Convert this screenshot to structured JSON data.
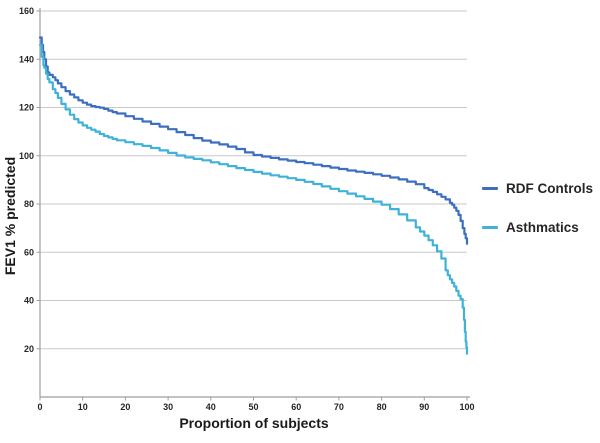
{
  "figure": {
    "background": "#ffffff",
    "grid_color": "#c9c9c9",
    "axis_line_color": "#9e9e9e",
    "tick_text_color": "#262626"
  },
  "chart_data": {
    "type": "line",
    "title": "",
    "xlabel": "Proportion of subjects",
    "ylabel": "FEV1 % predicted",
    "xlim": [
      0,
      100
    ],
    "ylim": [
      0,
      160
    ],
    "x_ticks": [
      0,
      10,
      20,
      30,
      40,
      50,
      60,
      70,
      80,
      90,
      100
    ],
    "y_ticks": [
      20,
      40,
      60,
      80,
      100,
      120,
      140,
      160
    ],
    "grid": "horizontal-only",
    "line_style": "stepped-percentile-curve",
    "legend_position": "right-middle",
    "series": [
      {
        "name": "RDF Controls",
        "color": "#3d6fc0",
        "points": [
          [
            0,
            149
          ],
          [
            0.4,
            146
          ],
          [
            0.7,
            143
          ],
          [
            1,
            140
          ],
          [
            1.4,
            137
          ],
          [
            1.8,
            134.5
          ],
          [
            2.2,
            133.5
          ],
          [
            3,
            132.5
          ],
          [
            3.6,
            131.3
          ],
          [
            4.2,
            130
          ],
          [
            5,
            128.4
          ],
          [
            6,
            126.8
          ],
          [
            7,
            125.4
          ],
          [
            8,
            124.2
          ],
          [
            9,
            123
          ],
          [
            10,
            122
          ],
          [
            11,
            121.2
          ],
          [
            12,
            120.6
          ],
          [
            13,
            120.2
          ],
          [
            14,
            119.9
          ],
          [
            15,
            119.4
          ],
          [
            16,
            118.7
          ],
          [
            17,
            118.1
          ],
          [
            18,
            117.5
          ],
          [
            20,
            116.4
          ],
          [
            22,
            115.3
          ],
          [
            24,
            114.2
          ],
          [
            26,
            113.2
          ],
          [
            28,
            112.1
          ],
          [
            30,
            111
          ],
          [
            32,
            109.8
          ],
          [
            34,
            108.6
          ],
          [
            36,
            107.3
          ],
          [
            38,
            106.3
          ],
          [
            40,
            105.5
          ],
          [
            42,
            104.7
          ],
          [
            44,
            103.8
          ],
          [
            46,
            102.8
          ],
          [
            48,
            101.4
          ],
          [
            50,
            100.3
          ],
          [
            52,
            99.7
          ],
          [
            54,
            99.1
          ],
          [
            56,
            98.5
          ],
          [
            58,
            98
          ],
          [
            60,
            97.4
          ],
          [
            62,
            96.9
          ],
          [
            64,
            96.3
          ],
          [
            66,
            95.7
          ],
          [
            68,
            95.1
          ],
          [
            70,
            94.5
          ],
          [
            72,
            93.9
          ],
          [
            74,
            93.4
          ],
          [
            76,
            92.9
          ],
          [
            78,
            92.3
          ],
          [
            80,
            91.7
          ],
          [
            82,
            91
          ],
          [
            84,
            90.2
          ],
          [
            86,
            89.3
          ],
          [
            88,
            88.2
          ],
          [
            90,
            86.6
          ],
          [
            91,
            85.8
          ],
          [
            92,
            85
          ],
          [
            93,
            84
          ],
          [
            94,
            83
          ],
          [
            95,
            81.9
          ],
          [
            96,
            80.5
          ],
          [
            96.5,
            79.7
          ],
          [
            97,
            78.5
          ],
          [
            97.5,
            77.2
          ],
          [
            98,
            75.5
          ],
          [
            98.5,
            73
          ],
          [
            99,
            70
          ],
          [
            99.4,
            67.6
          ],
          [
            99.7,
            65.8
          ],
          [
            100,
            63.5
          ]
        ]
      },
      {
        "name": "Asthmatics",
        "color": "#3fb2da",
        "points": [
          [
            0,
            146
          ],
          [
            0.4,
            141
          ],
          [
            0.8,
            137.5
          ],
          [
            1,
            136.5
          ],
          [
            1.4,
            134
          ],
          [
            1.8,
            131.8
          ],
          [
            2.2,
            130.4
          ],
          [
            3,
            127.6
          ],
          [
            3.6,
            126
          ],
          [
            4.2,
            124
          ],
          [
            5,
            121.5
          ],
          [
            6,
            119.2
          ],
          [
            7,
            117
          ],
          [
            8,
            115.2
          ],
          [
            9,
            113.8
          ],
          [
            10,
            112.6
          ],
          [
            11,
            111.6
          ],
          [
            12,
            110.8
          ],
          [
            13,
            110
          ],
          [
            14,
            109
          ],
          [
            15,
            108.2
          ],
          [
            16,
            107.6
          ],
          [
            17,
            107
          ],
          [
            18,
            106.4
          ],
          [
            20,
            105.6
          ],
          [
            22,
            104.8
          ],
          [
            24,
            104.1
          ],
          [
            26,
            103.2
          ],
          [
            28,
            102.2
          ],
          [
            30,
            101.2
          ],
          [
            32,
            100.1
          ],
          [
            34,
            99.3
          ],
          [
            36,
            98.7
          ],
          [
            38,
            98.1
          ],
          [
            40,
            97.3
          ],
          [
            42,
            96.5
          ],
          [
            44,
            95.7
          ],
          [
            46,
            94.9
          ],
          [
            48,
            94.1
          ],
          [
            50,
            93.3
          ],
          [
            52,
            92.6
          ],
          [
            54,
            91.9
          ],
          [
            56,
            91.3
          ],
          [
            58,
            90.7
          ],
          [
            60,
            90
          ],
          [
            62,
            89.2
          ],
          [
            64,
            88.3
          ],
          [
            66,
            87.3
          ],
          [
            68,
            86.3
          ],
          [
            70,
            85.3
          ],
          [
            72,
            84.3
          ],
          [
            74,
            83.2
          ],
          [
            76,
            82.1
          ],
          [
            78,
            81
          ],
          [
            80,
            79.7
          ],
          [
            82,
            77.9
          ],
          [
            84,
            75.7
          ],
          [
            86,
            73.2
          ],
          [
            88,
            70.3
          ],
          [
            89,
            68.6
          ],
          [
            90,
            66.9
          ],
          [
            91,
            65
          ],
          [
            92,
            62.9
          ],
          [
            93,
            60.4
          ],
          [
            94,
            57.4
          ],
          [
            95,
            52.5
          ],
          [
            95.5,
            50.5
          ],
          [
            96,
            48.8
          ],
          [
            96.5,
            47.3
          ],
          [
            97,
            45.8
          ],
          [
            97.5,
            44
          ],
          [
            98,
            42
          ],
          [
            98.5,
            40.6
          ],
          [
            99,
            37
          ],
          [
            99.3,
            32
          ],
          [
            99.5,
            27
          ],
          [
            99.7,
            23
          ],
          [
            99.85,
            20.5
          ],
          [
            100,
            18
          ]
        ]
      }
    ]
  },
  "legend": {
    "items": [
      {
        "label": "RDF Controls"
      },
      {
        "label": "Asthmatics"
      }
    ]
  }
}
